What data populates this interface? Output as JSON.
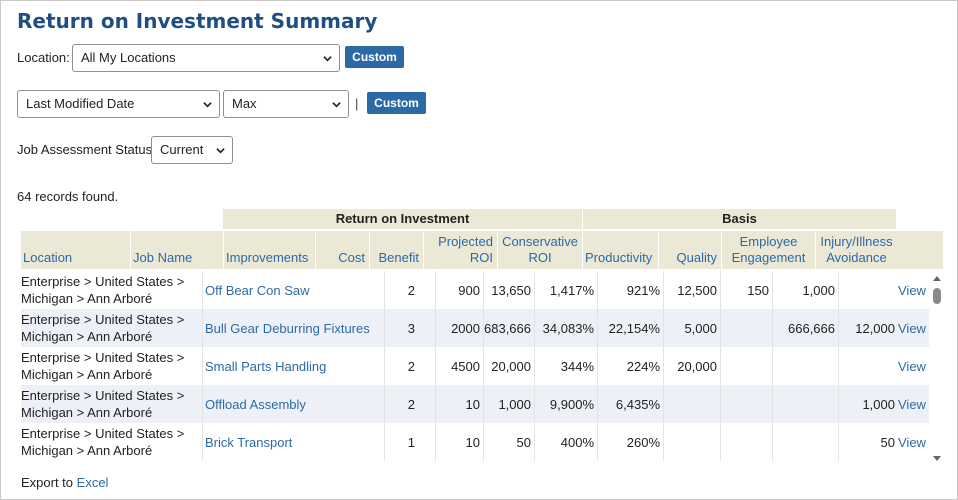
{
  "page": {
    "title": "Return on Investment Summary"
  },
  "filters": {
    "location_label": "Location:",
    "location_value": "All My Locations",
    "location_custom": "Custom",
    "date_field_value": "Last Modified Date",
    "date_range_value": "Max",
    "separator": "|",
    "date_custom": "Custom",
    "status_label": "Job Assessment Status:",
    "status_value": "Current"
  },
  "records_text": "64 records found.",
  "table": {
    "groups": {
      "roi": "Return on Investment",
      "basis": "Basis"
    },
    "headers": {
      "location": "Location",
      "job_name": "Job Name",
      "improvements": "Improvements",
      "cost": "Cost",
      "benefit": "Benefit",
      "projected_roi": "Projected ROI",
      "conservative_roi": "Conservative ROI",
      "productivity": "Productivity",
      "quality": "Quality",
      "employee_engagement": "Employee Engagement",
      "injury_illness_avoidance": "Injury/Illness Avoidance"
    },
    "rows": [
      {
        "loc1": "Enterprise > United States >",
        "loc2": "Michigan > Ann Arboré",
        "job": "Off Bear Con Saw",
        "improvements": "2",
        "cost": "900",
        "benefit": "13,650",
        "projected": "1,417%",
        "conservative": "921%",
        "productivity": "12,500",
        "quality": "150",
        "engagement": "1,000",
        "injury": "",
        "view": "View"
      },
      {
        "loc1": "Enterprise > United States >",
        "loc2": "Michigan > Ann Arboré",
        "job": "Bull Gear Deburring Fixtures",
        "improvements": "3",
        "cost": "2000",
        "benefit": "683,666",
        "projected": "34,083%",
        "conservative": "22,154%",
        "productivity": "5,000",
        "quality": "",
        "engagement": "666,666",
        "injury": "12,000",
        "view": "View"
      },
      {
        "loc1": "Enterprise > United States >",
        "loc2": "Michigan > Ann Arboré",
        "job": "Small Parts Handling",
        "improvements": "2",
        "cost": "4500",
        "benefit": "20,000",
        "projected": "344%",
        "conservative": "224%",
        "productivity": "20,000",
        "quality": "",
        "engagement": "",
        "injury": "",
        "view": "View"
      },
      {
        "loc1": "Enterprise > United States >",
        "loc2": "Michigan > Ann Arboré",
        "job": "Offload Assembly",
        "improvements": "2",
        "cost": "10",
        "benefit": "1,000",
        "projected": "9,900%",
        "conservative": "6,435%",
        "productivity": "",
        "quality": "",
        "engagement": "",
        "injury": "1,000",
        "view": "View"
      },
      {
        "loc1": "Enterprise > United States >",
        "loc2": "Michigan > Ann Arboré",
        "job": "Brick Transport",
        "improvements": "1",
        "cost": "10",
        "benefit": "50",
        "projected": "400%",
        "conservative": "260%",
        "productivity": "",
        "quality": "",
        "engagement": "",
        "injury": "50",
        "view": "View"
      }
    ]
  },
  "footer": {
    "export_prefix": "Export to",
    "export_link": "Excel"
  },
  "icons": {
    "select": "chevron-down-icon",
    "scroll_up": "arrow-up-icon",
    "scroll_down": "arrow-down-icon"
  }
}
